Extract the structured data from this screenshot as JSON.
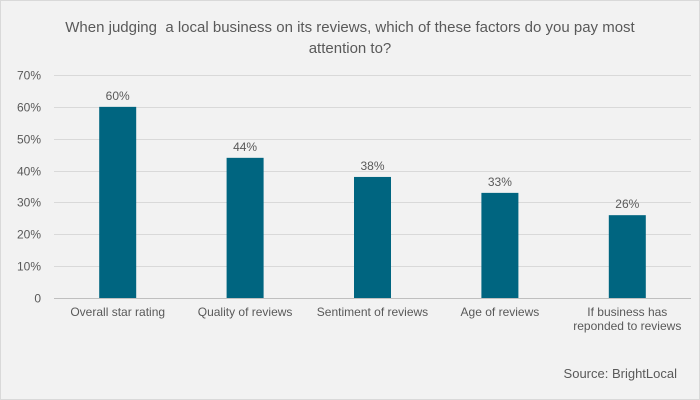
{
  "chart_data": {
    "type": "bar",
    "title_lines": [
      "When judging  a local business on its reviews, which of these factors do you pay most",
      "attention to?"
    ],
    "categories": [
      [
        "Overall star rating"
      ],
      [
        "Quality of reviews"
      ],
      [
        "Sentiment of reviews"
      ],
      [
        "Age of reviews"
      ],
      [
        "If business has",
        "reponded to reviews"
      ]
    ],
    "values": [
      60,
      44,
      38,
      33,
      26
    ],
    "value_labels": [
      "60%",
      "44%",
      "38%",
      "33%",
      "26%"
    ],
    "ylim": [
      0,
      70
    ],
    "yticks": [
      0,
      10,
      20,
      30,
      40,
      50,
      60,
      70
    ],
    "ytick_labels": [
      "0",
      "10%",
      "20%",
      "30%",
      "40%",
      "50%",
      "60%",
      "70%"
    ],
    "grid": true,
    "bar_color": "#006580",
    "source": "Source: BrightLocal"
  }
}
